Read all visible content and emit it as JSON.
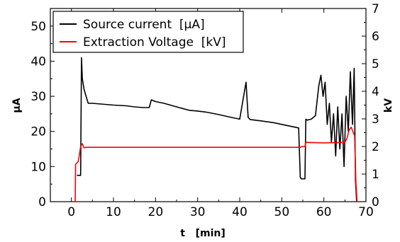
{
  "chart_data": {
    "type": "line",
    "xlabel": "t   [min]",
    "ylabel_left": "µA",
    "ylabel_right": "kV",
    "xlim": [
      -5,
      70
    ],
    "ylim_left": [
      0,
      55
    ],
    "ylim_right": [
      0,
      7
    ],
    "x_ticks": [
      0,
      10,
      20,
      30,
      40,
      50,
      60,
      70
    ],
    "y_left_ticks": [
      0,
      10,
      20,
      30,
      40,
      50
    ],
    "y_right_ticks": [
      0,
      1,
      2,
      3,
      4,
      5,
      6,
      7
    ],
    "grid": false,
    "legend_placement": "top-left",
    "series": [
      {
        "name": "Source current  [µA]",
        "axis": "left",
        "color": "#000000",
        "x": [
          1.3,
          2.2,
          2.4,
          2.6,
          3.0,
          3.5,
          4.0,
          5.0,
          7.0,
          10.0,
          13.0,
          15.0,
          17.0,
          18.5,
          19.0,
          20.0,
          22.0,
          25.0,
          28.0,
          30.0,
          32.0,
          35.0,
          38.0,
          40.0,
          41.5,
          42.0,
          42.5,
          45.0,
          48.0,
          50.0,
          52.0,
          54.0,
          54.4,
          54.6,
          55.5,
          55.7,
          56.0,
          57.0,
          58.0,
          58.8,
          59.3,
          59.8,
          60.3,
          60.8,
          61.3,
          61.8,
          62.3,
          62.8,
          63.3,
          63.8,
          64.3,
          64.8,
          65.3,
          65.8,
          66.3,
          66.8,
          67.2,
          67.5,
          67.8
        ],
        "values": [
          7.5,
          7.5,
          41,
          35,
          32,
          30,
          28,
          28,
          27.8,
          27.5,
          27.3,
          27,
          26.8,
          26.8,
          29,
          28.5,
          28,
          27,
          26,
          25.8,
          25.5,
          24.8,
          24,
          23.5,
          34,
          24,
          23.4,
          23,
          22.5,
          22,
          21.5,
          21,
          7,
          6.5,
          6.5,
          23.5,
          23.2,
          23.5,
          24.5,
          33,
          36,
          30,
          34,
          22,
          28,
          17,
          25,
          13,
          27,
          15,
          25,
          10,
          30,
          20,
          37,
          22,
          38,
          6,
          0
        ]
      },
      {
        "name": "Extraction Voltage  [kV]",
        "axis": "right",
        "color": "#ff0000",
        "x": [
          0.6,
          0.9,
          1.0,
          1.6,
          1.8,
          2.2,
          2.6,
          3.0,
          3.5,
          5.0,
          10.0,
          20.0,
          30.0,
          40.0,
          50.0,
          54.5,
          54.7,
          55.5,
          55.7,
          60.0,
          65.0,
          65.5,
          66.0,
          66.5,
          67.0,
          67.3,
          67.6,
          67.9
        ],
        "values": [
          0,
          0,
          1.35,
          1.45,
          1.6,
          2.0,
          2.1,
          1.95,
          1.97,
          1.97,
          1.97,
          1.97,
          1.97,
          1.97,
          1.97,
          1.97,
          2.0,
          2.0,
          2.15,
          2.13,
          2.15,
          2.3,
          2.6,
          2.7,
          2.5,
          2.4,
          0.7,
          0
        ]
      }
    ]
  }
}
